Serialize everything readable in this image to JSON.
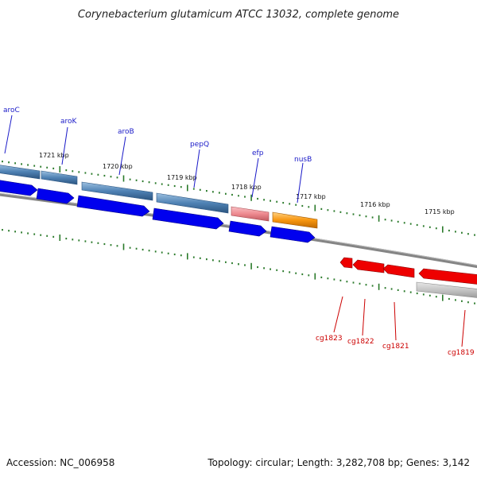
{
  "title": "Corynebacterium glutamicum ATCC 13032, complete genome",
  "footer": {
    "accession": "Accession: NC_006958",
    "topology": "Topology: circular; Length: 3,282,708 bp; Genes: 3,142"
  },
  "scale_labels": [
    "1721 kbp",
    "1720 kbp",
    "1719 kbp",
    "1718 kbp",
    "1717 kbp",
    "1716 kbp",
    "1715 kbp"
  ],
  "forward_labels": [
    "aroC",
    "aroK",
    "aroB",
    "pepQ",
    "efp",
    "nusB"
  ],
  "reverse_labels": [
    "cg1823",
    "cg1822",
    "cg1821",
    "cg1819"
  ],
  "colors": {
    "forward_label": "#1a1ac8",
    "reverse_label": "#cc0000",
    "backbone": "#888888",
    "tick": "#2a7a2a",
    "cds_blue": "#0000ee",
    "cds_red": "#ee0000",
    "gene_steel": "#4f82b4",
    "gene_pink": "#ee8a90",
    "gene_orange": "#f7960f",
    "gene_grey": "#bdbdbd"
  }
}
